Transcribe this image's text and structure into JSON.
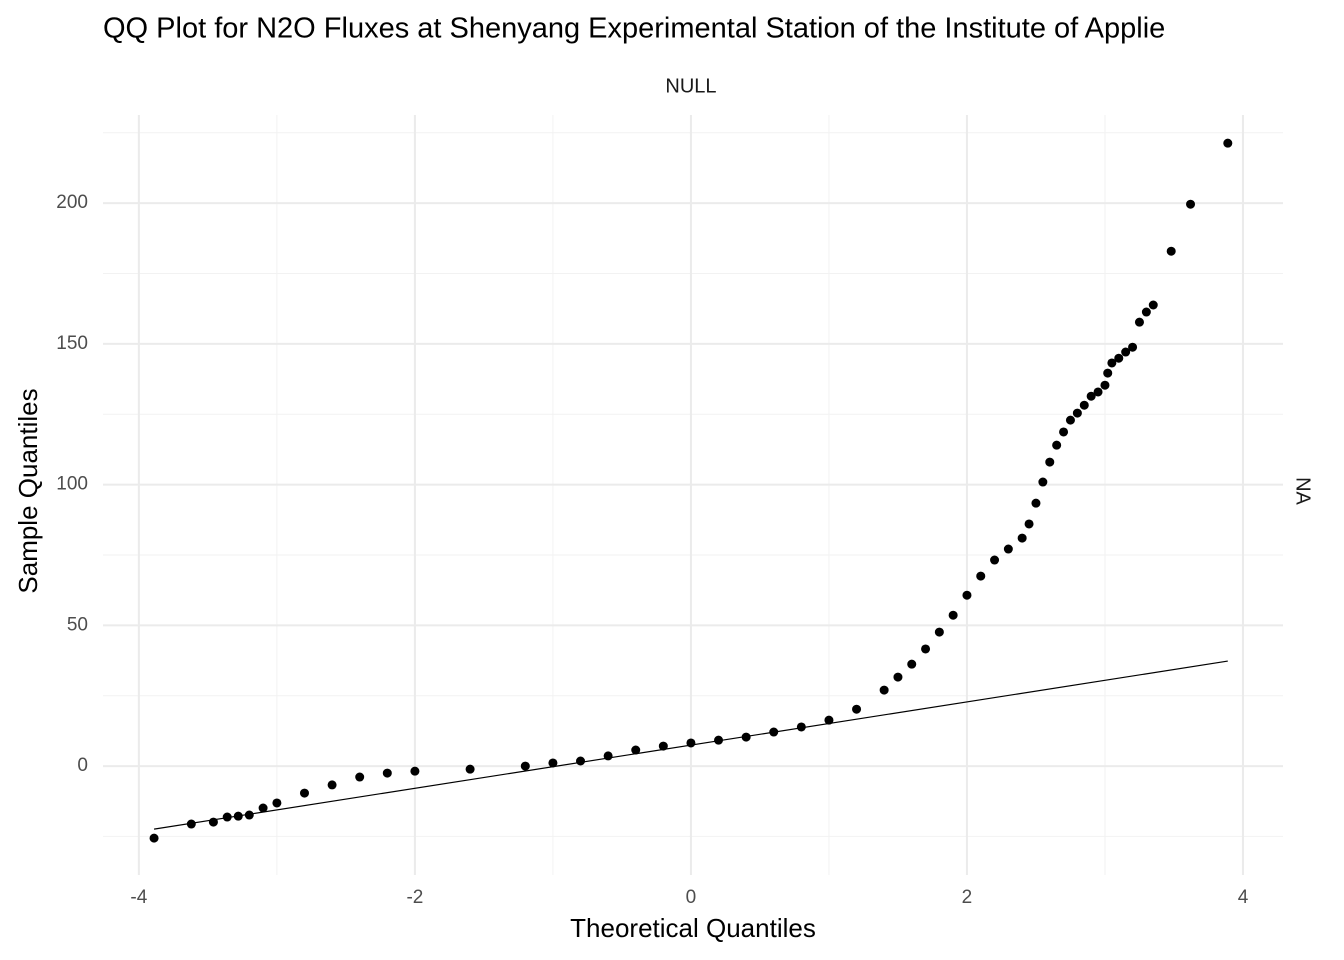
{
  "chart_data": {
    "type": "scatter",
    "title": "QQ Plot for N2O Fluxes at Shenyang Experimental Station of the Institute of Applie",
    "facet_top": "NULL",
    "facet_right": "NA",
    "x_label": "Theoretical Quantiles",
    "y_label": "Sample Quantiles",
    "xlim": [
      -4.26,
      4.29
    ],
    "ylim": [
      -38.7,
      231.3
    ],
    "xticks": [
      -4,
      -2,
      0,
      2,
      4
    ],
    "yticks": [
      0,
      50,
      100,
      150,
      200
    ],
    "x_minor_grid": [
      -3,
      -1,
      1,
      3
    ],
    "y_minor_grid": [
      -25,
      25,
      75,
      125,
      175,
      225
    ],
    "grid": true,
    "points": {
      "color": "#000000",
      "x": [
        -3.89,
        -3.62,
        -3.46,
        -3.36,
        -3.28,
        -3.2,
        -3.1,
        -3.0,
        -2.8,
        -2.6,
        -2.4,
        -2.2,
        -2.0,
        -1.6,
        -1.2,
        -1.0,
        -0.8,
        -0.6,
        -0.4,
        -0.2,
        0,
        0.2,
        0.4,
        0.6,
        0.8,
        1.0,
        1.2,
        1.4,
        1.5,
        1.6,
        1.7,
        1.8,
        1.9,
        2.0,
        2.1,
        2.2,
        2.3,
        2.4,
        2.45,
        2.5,
        2.55,
        2.6,
        2.65,
        2.7,
        2.75,
        2.8,
        2.85,
        2.9,
        2.95,
        3.0,
        3.02,
        3.05,
        3.1,
        3.15,
        3.2,
        3.25,
        3.3,
        3.35,
        3.48,
        3.62,
        3.89
      ],
      "values": [
        -25.6,
        -20.6,
        -19.9,
        -18.1,
        -17.8,
        -17.4,
        -14.9,
        -13.1,
        -9.6,
        -6.7,
        -3.9,
        -2.5,
        -1.8,
        -1.1,
        0,
        1.1,
        1.8,
        3.6,
        5.7,
        7.1,
        8.2,
        9.2,
        10.3,
        12.1,
        13.9,
        16.3,
        20.2,
        27,
        31.6,
        36.2,
        41.6,
        47.6,
        53.6,
        60.7,
        67.5,
        73.2,
        77.1,
        81,
        86,
        93.4,
        100.9,
        108,
        114,
        118.7,
        122.9,
        125.4,
        128.2,
        131.4,
        132.9,
        135.3,
        139.6,
        143.2,
        144.9,
        147.1,
        148.8,
        157.7,
        161.3,
        163.8,
        182.9,
        199.6,
        221.3
      ]
    },
    "reference_line": {
      "color": "#000000",
      "x": [
        -3.89,
        3.89
      ],
      "values": [
        -22.4,
        37.3
      ]
    }
  }
}
